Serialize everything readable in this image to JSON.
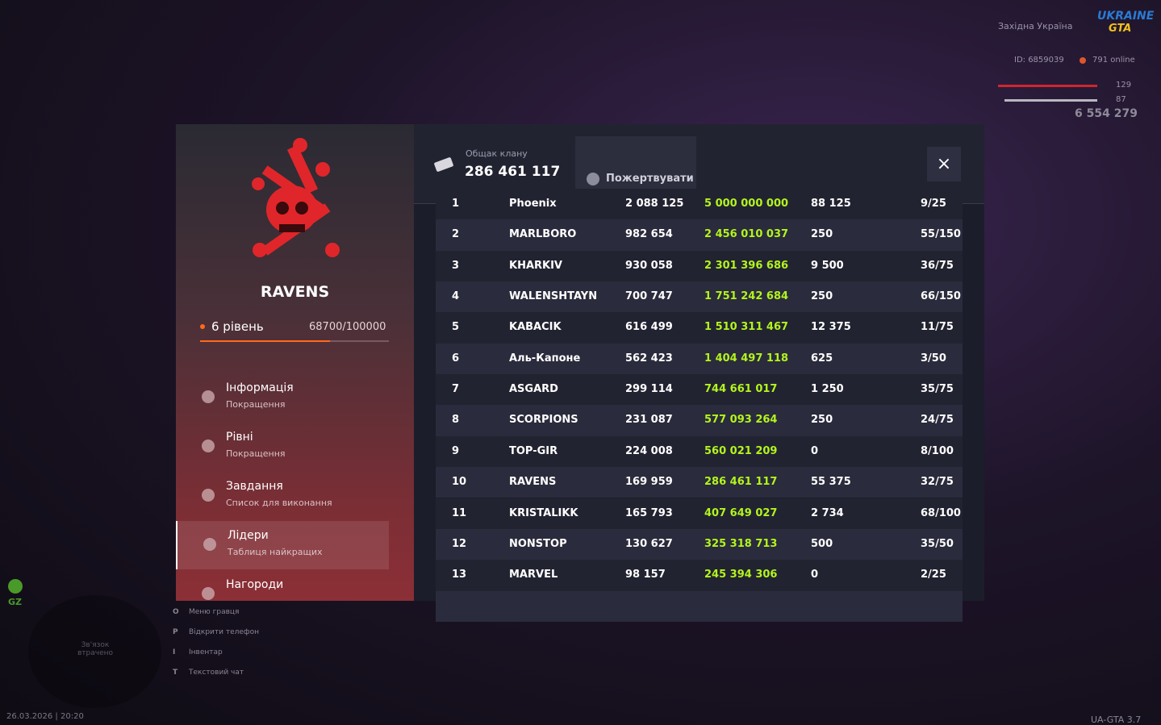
{
  "hud": {
    "region": "Західна Україна",
    "logo_top": "UKRAINE",
    "logo_bottom": "GTA",
    "id": "ID: 6859039",
    "online": "791 online",
    "health": "129",
    "armor": "87",
    "money": "6 554 279",
    "zone": "GZ",
    "mic_status": "Зв'язок втрачено",
    "datetime": "26.03.2026 | 20:20",
    "version": "UA-GTA 3.7",
    "hotkeys": [
      {
        "key": "O",
        "label": "Меню гравця"
      },
      {
        "key": "P",
        "label": "Відкрити телефон"
      },
      {
        "key": "I",
        "label": "Інвентар"
      },
      {
        "key": "T",
        "label": "Текстовий чат"
      }
    ]
  },
  "clan": {
    "name": "RAVENS",
    "level": "6 рівень",
    "progress": "68700/100000",
    "menu": [
      {
        "title": "Інформація",
        "subtitle": "Покращення"
      },
      {
        "title": "Рівні",
        "subtitle": "Покращення"
      },
      {
        "title": "Завдання",
        "subtitle": "Список для виконання"
      },
      {
        "title": "Лідери",
        "subtitle": "Таблиця найкращих"
      },
      {
        "title": "Нагороди"
      }
    ]
  },
  "bank": {
    "label": "Общак клану",
    "amount": "286 461 117",
    "donate": "Пожертвувати",
    "close": "×"
  },
  "table": {
    "rows": [
      [
        "1",
        "Phoenix",
        "2 088 125",
        "5 000 000 000",
        "88 125",
        "9/25"
      ],
      [
        "2",
        "MARLBORO",
        "982 654",
        "2 456 010 037",
        "250",
        "55/150"
      ],
      [
        "3",
        "KHARKIV",
        "930 058",
        "2 301 396 686",
        "9 500",
        "36/75"
      ],
      [
        "4",
        "WALENSHTAYN",
        "700 747",
        "1 751 242 684",
        "250",
        "66/150"
      ],
      [
        "5",
        "KABACIK",
        "616 499",
        "1 510 311 467",
        "12 375",
        "11/75"
      ],
      [
        "6",
        "Аль-Капоне",
        "562 423",
        "1 404 497 118",
        "625",
        "3/50"
      ],
      [
        "7",
        "ASGARD",
        "299 114",
        "744 661 017",
        "1 250",
        "35/75"
      ],
      [
        "8",
        "SCORPIONS",
        "231 087",
        "577 093 264",
        "250",
        "24/75"
      ],
      [
        "9",
        "TOP-GIR",
        "224 008",
        "560 021 209",
        "0",
        "8/100"
      ],
      [
        "10",
        "RAVENS",
        "169 959",
        "286 461 117",
        "55 375",
        "32/75"
      ],
      [
        "11",
        "KRISTALIKK",
        "165 793",
        "407 649 027",
        "2 734",
        "68/100"
      ],
      [
        "12",
        "NONSTOP",
        "130 627",
        "325 318 713",
        "500",
        "35/50"
      ],
      [
        "13",
        "MARVEL",
        "98 157",
        "245 394 306",
        "0",
        "2/25"
      ]
    ]
  }
}
